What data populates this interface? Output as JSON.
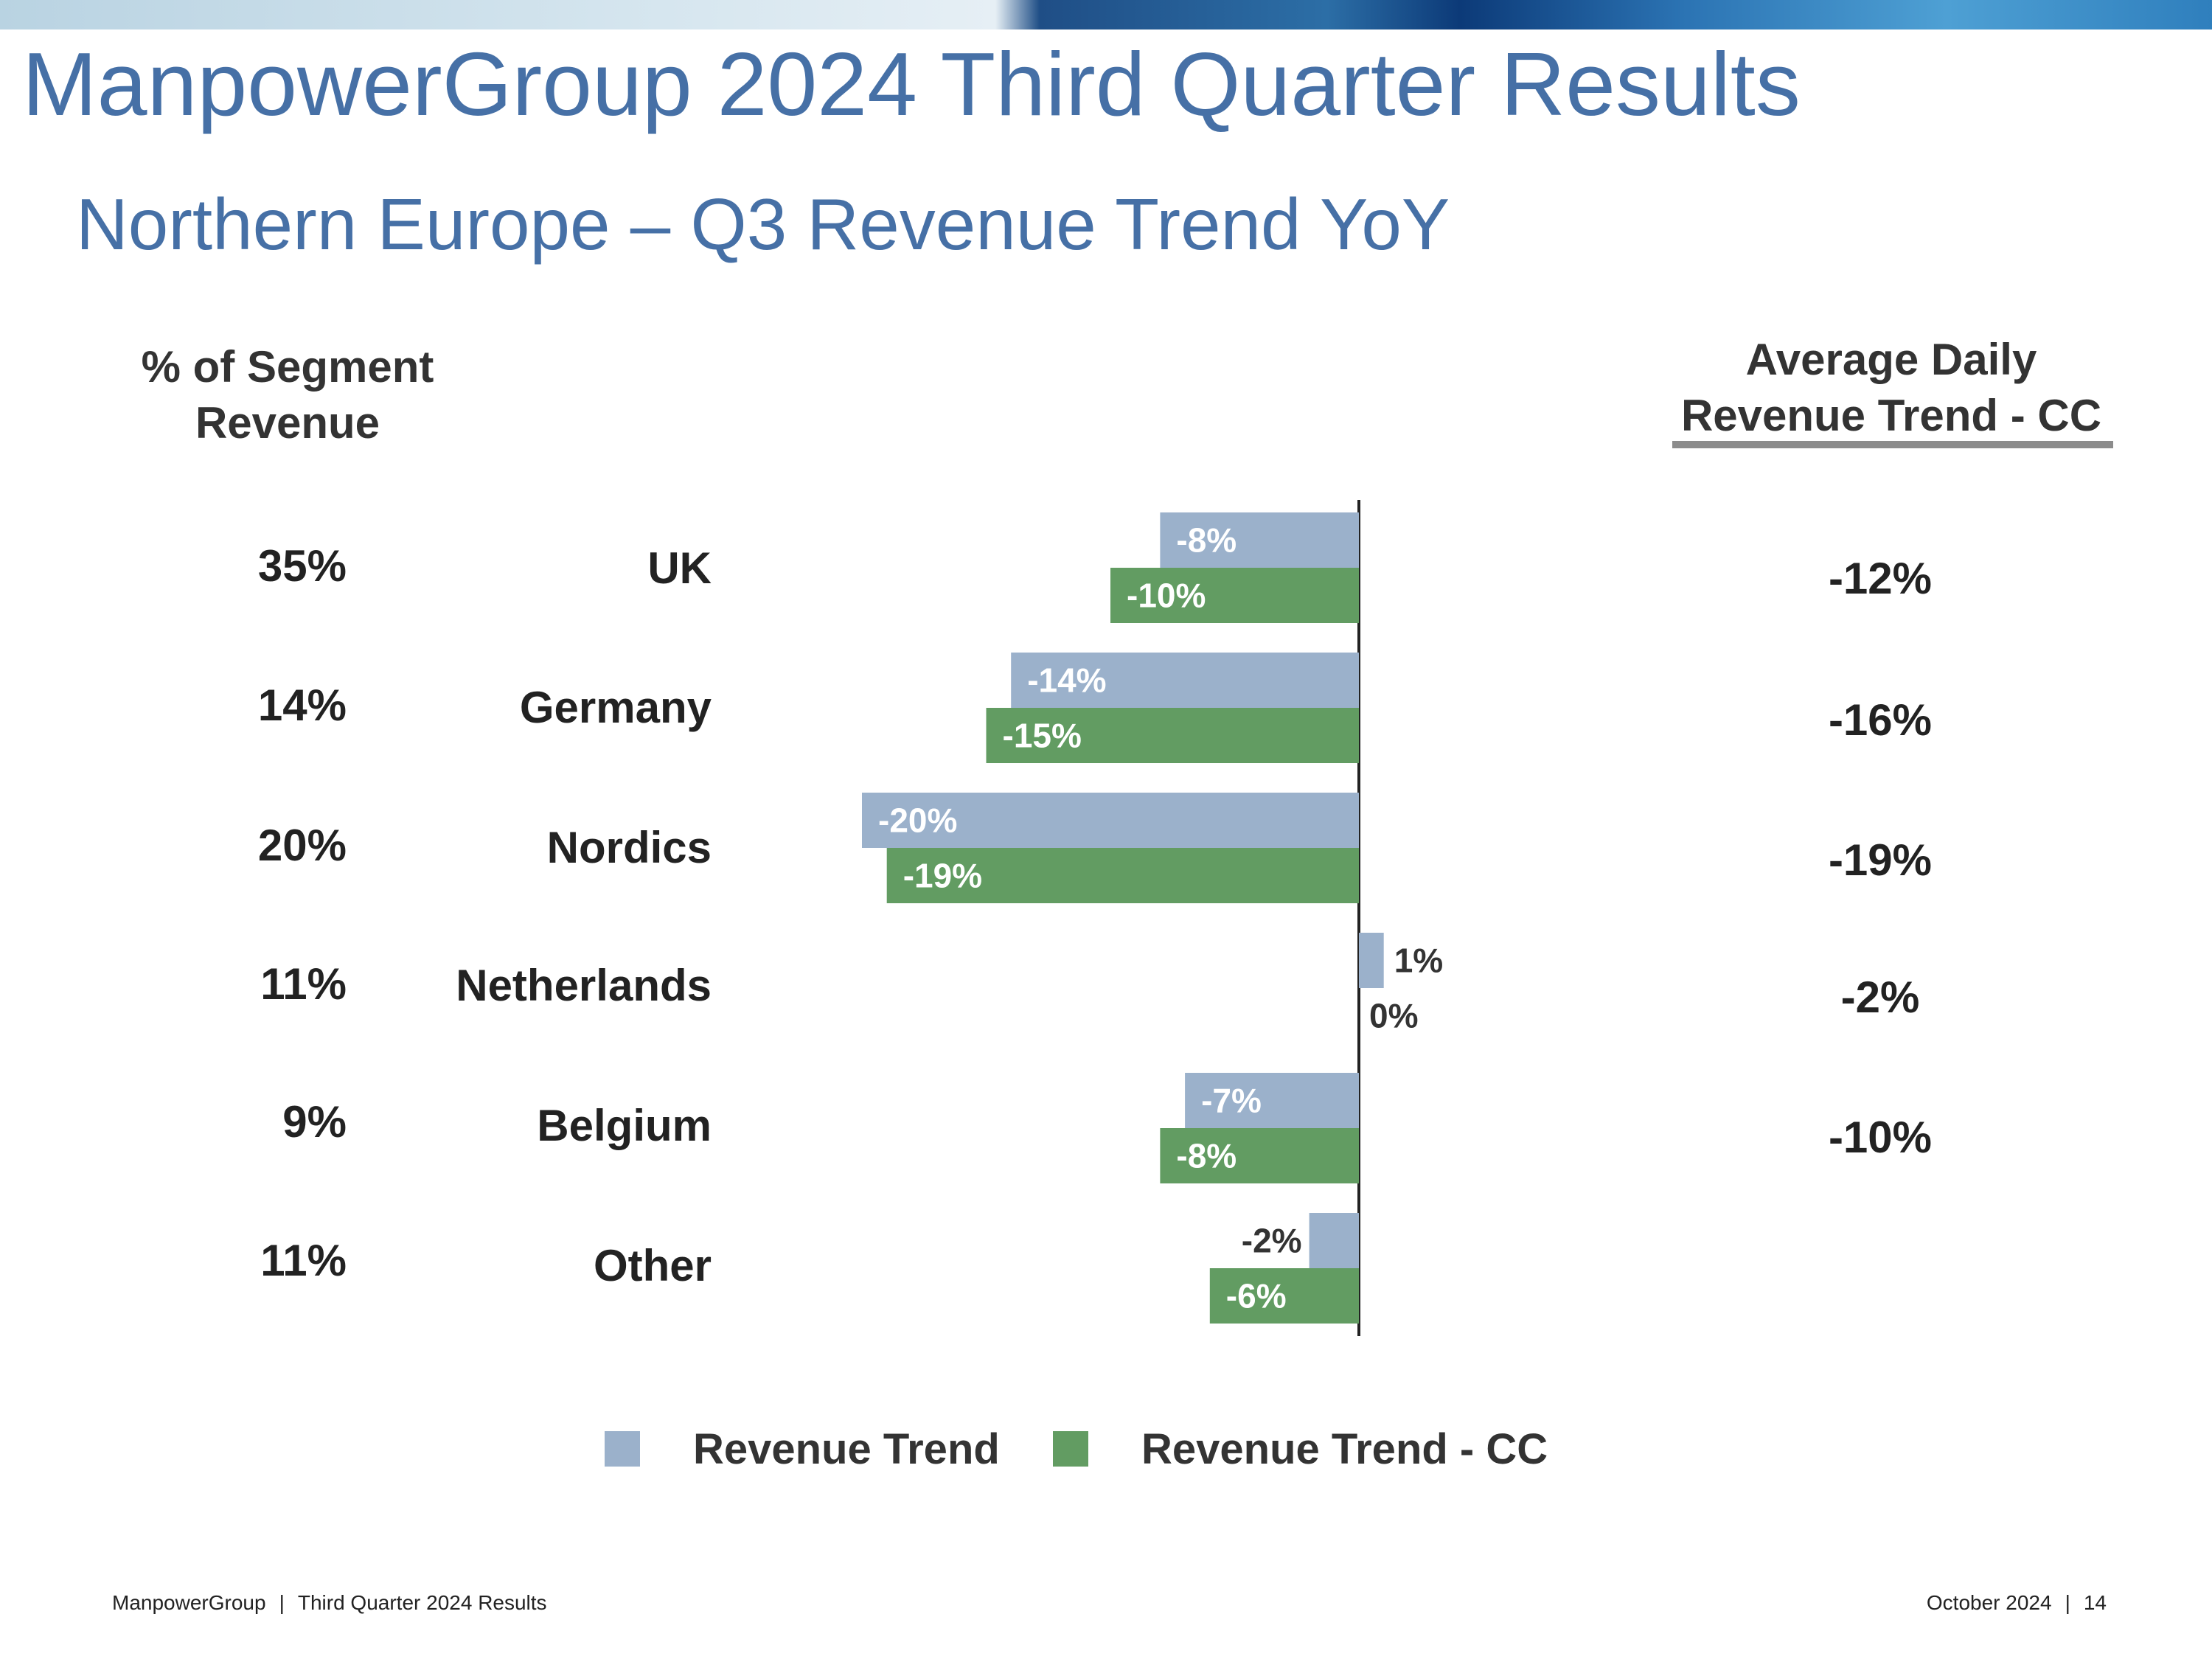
{
  "slide": {
    "title": "ManpowerGroup 2024 Third Quarter Results",
    "subtitle": "Northern Europe – Q3 Revenue Trend YoY",
    "left_header": "% of Segment Revenue",
    "right_header_line1": "Average Daily",
    "right_header_line2": "Revenue Trend - CC"
  },
  "rows": [
    {
      "segment_pct": "35%",
      "country": "UK",
      "adr_cc": "-12%"
    },
    {
      "segment_pct": "14%",
      "country": "Germany",
      "adr_cc": "-16%"
    },
    {
      "segment_pct": "20%",
      "country": "Nordics",
      "adr_cc": "-19%"
    },
    {
      "segment_pct": "11%",
      "country": "Netherlands",
      "adr_cc": "-2%"
    },
    {
      "segment_pct": "9%",
      "country": "Belgium",
      "adr_cc": "-10%"
    },
    {
      "segment_pct": "11%",
      "country": "Other",
      "adr_cc": ""
    }
  ],
  "chart_data": {
    "type": "bar",
    "orientation": "horizontal",
    "categories": [
      "UK",
      "Germany",
      "Nordics",
      "Netherlands",
      "Belgium",
      "Other"
    ],
    "series": [
      {
        "name": "Revenue Trend",
        "color": "#9bb1cb",
        "values": [
          -8,
          -14,
          -20,
          1,
          -7,
          -2
        ],
        "labels": [
          "-8%",
          "-14%",
          "-20%",
          "1%",
          "-7%",
          "-2%"
        ]
      },
      {
        "name": "Revenue Trend - CC",
        "color": "#629c62",
        "values": [
          -10,
          -15,
          -19,
          0,
          -8,
          -6
        ],
        "labels": [
          "-10%",
          "-15%",
          "-19%",
          "0%",
          "-8%",
          "-6%"
        ]
      }
    ],
    "value_unit": "%",
    "xlim": [
      -20,
      3
    ],
    "legend_position": "bottom",
    "grid": false
  },
  "legend": [
    {
      "label": "Revenue Trend",
      "color": "#9bb1cb"
    },
    {
      "label": "Revenue Trend - CC",
      "color": "#629c62"
    }
  ],
  "footer": {
    "company": "ManpowerGroup",
    "report": "Third Quarter 2024 Results",
    "date": "October 2024",
    "page": "14",
    "separator": "|"
  }
}
